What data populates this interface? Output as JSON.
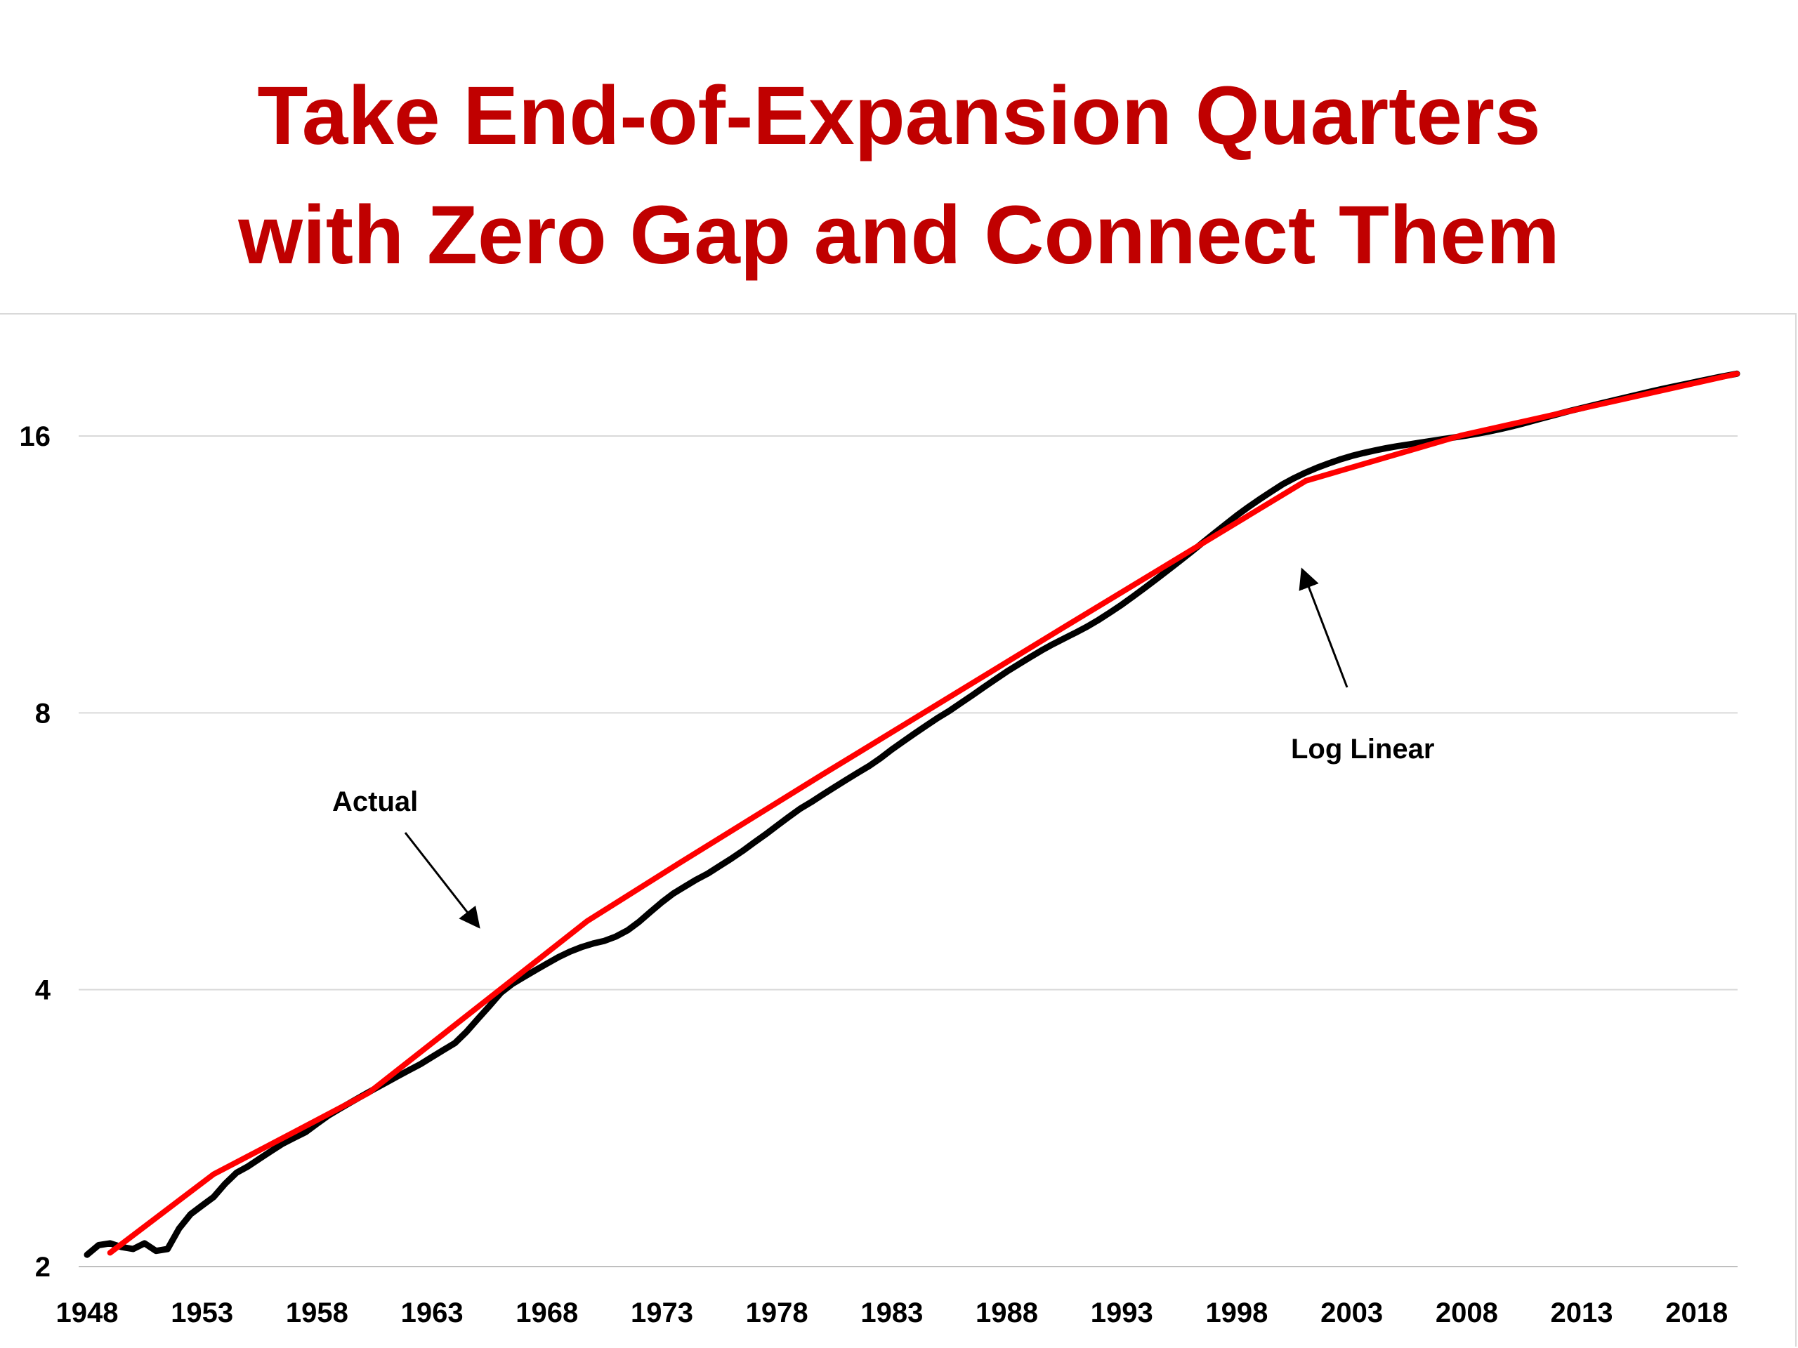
{
  "title_lines": [
    "Take End-of-Expansion Quarters",
    "with Zero Gap and Connect Them"
  ],
  "chart_data": {
    "type": "line",
    "title": "Take End-of-Expansion Quarters with Zero Gap and Connect Them",
    "xlabel": "",
    "ylabel": "",
    "y_scale": "log2",
    "xlim": [
      1948,
      2019.75
    ],
    "ylim": [
      2,
      19
    ],
    "x_ticks": [
      "1948",
      "1953",
      "1958",
      "1963",
      "1968",
      "1973",
      "1978",
      "1983",
      "1988",
      "1993",
      "1998",
      "2003",
      "2008",
      "2013",
      "2018"
    ],
    "y_ticks": [
      2,
      4,
      8,
      16
    ],
    "grid": "horizontal",
    "legend": "none",
    "series": [
      {
        "color": "#000000",
        "points": [
          [
            1948.0,
            2.06
          ],
          [
            1948.5,
            2.11
          ],
          [
            1949.0,
            2.12
          ],
          [
            1949.5,
            2.1
          ],
          [
            1950.0,
            2.09
          ],
          [
            1950.5,
            2.12
          ],
          [
            1951.0,
            2.08
          ],
          [
            1951.5,
            2.09
          ],
          [
            1952.0,
            2.2
          ],
          [
            1952.5,
            2.28
          ],
          [
            1953.0,
            2.33
          ],
          [
            1953.5,
            2.38
          ],
          [
            1954.0,
            2.46
          ],
          [
            1954.5,
            2.53
          ],
          [
            1955.0,
            2.57
          ],
          [
            1955.5,
            2.62
          ],
          [
            1956.0,
            2.67
          ],
          [
            1956.5,
            2.72
          ],
          [
            1957.0,
            2.76
          ],
          [
            1957.5,
            2.8
          ],
          [
            1958.0,
            2.86
          ],
          [
            1958.5,
            2.92
          ],
          [
            1959.0,
            2.97
          ],
          [
            1959.5,
            3.02
          ],
          [
            1960.0,
            3.07
          ],
          [
            1960.5,
            3.12
          ],
          [
            1961.0,
            3.17
          ],
          [
            1961.5,
            3.22
          ],
          [
            1962.0,
            3.27
          ],
          [
            1962.5,
            3.32
          ],
          [
            1963.0,
            3.38
          ],
          [
            1963.5,
            3.44
          ],
          [
            1964.0,
            3.5
          ],
          [
            1964.5,
            3.6
          ],
          [
            1965.0,
            3.72
          ],
          [
            1965.5,
            3.84
          ],
          [
            1966.0,
            3.97
          ],
          [
            1966.5,
            4.06
          ],
          [
            1967.0,
            4.13
          ],
          [
            1967.5,
            4.2
          ],
          [
            1968.0,
            4.27
          ],
          [
            1968.5,
            4.34
          ],
          [
            1969.0,
            4.4
          ],
          [
            1969.5,
            4.45
          ],
          [
            1970.0,
            4.49
          ],
          [
            1970.5,
            4.52
          ],
          [
            1971.0,
            4.57
          ],
          [
            1971.5,
            4.64
          ],
          [
            1972.0,
            4.74
          ],
          [
            1972.5,
            4.86
          ],
          [
            1973.0,
            4.98
          ],
          [
            1973.5,
            5.09
          ],
          [
            1974.0,
            5.18
          ],
          [
            1974.5,
            5.27
          ],
          [
            1975.0,
            5.35
          ],
          [
            1975.5,
            5.45
          ],
          [
            1976.0,
            5.55
          ],
          [
            1976.5,
            5.66
          ],
          [
            1977.0,
            5.78
          ],
          [
            1977.5,
            5.9
          ],
          [
            1978.0,
            6.03
          ],
          [
            1978.5,
            6.16
          ],
          [
            1979.0,
            6.29
          ],
          [
            1979.5,
            6.4
          ],
          [
            1980.0,
            6.52
          ],
          [
            1980.5,
            6.64
          ],
          [
            1981.0,
            6.76
          ],
          [
            1981.5,
            6.88
          ],
          [
            1982.0,
            7.0
          ],
          [
            1982.5,
            7.14
          ],
          [
            1983.0,
            7.3
          ],
          [
            1983.5,
            7.45
          ],
          [
            1984.0,
            7.6
          ],
          [
            1984.5,
            7.75
          ],
          [
            1985.0,
            7.9
          ],
          [
            1985.5,
            8.04
          ],
          [
            1986.0,
            8.2
          ],
          [
            1986.5,
            8.36
          ],
          [
            1987.0,
            8.53
          ],
          [
            1987.5,
            8.7
          ],
          [
            1988.0,
            8.87
          ],
          [
            1988.5,
            9.03
          ],
          [
            1989.0,
            9.19
          ],
          [
            1989.5,
            9.35
          ],
          [
            1990.0,
            9.5
          ],
          [
            1990.5,
            9.64
          ],
          [
            1991.0,
            9.78
          ],
          [
            1991.5,
            9.93
          ],
          [
            1992.0,
            10.1
          ],
          [
            1992.5,
            10.29
          ],
          [
            1993.0,
            10.49
          ],
          [
            1993.5,
            10.71
          ],
          [
            1994.0,
            10.94
          ],
          [
            1994.5,
            11.18
          ],
          [
            1995.0,
            11.43
          ],
          [
            1995.5,
            11.69
          ],
          [
            1996.0,
            11.96
          ],
          [
            1996.5,
            12.24
          ],
          [
            1997.0,
            12.53
          ],
          [
            1997.5,
            12.82
          ],
          [
            1998.0,
            13.11
          ],
          [
            1998.5,
            13.39
          ],
          [
            1999.0,
            13.66
          ],
          [
            1999.5,
            13.92
          ],
          [
            2000.0,
            14.18
          ],
          [
            2000.5,
            14.4
          ],
          [
            2001.0,
            14.6
          ],
          [
            2001.5,
            14.78
          ],
          [
            2002.0,
            14.94
          ],
          [
            2002.5,
            15.09
          ],
          [
            2003.0,
            15.22
          ],
          [
            2003.5,
            15.33
          ],
          [
            2004.0,
            15.43
          ],
          [
            2004.5,
            15.52
          ],
          [
            2005.0,
            15.6
          ],
          [
            2005.5,
            15.67
          ],
          [
            2006.0,
            15.74
          ],
          [
            2006.5,
            15.81
          ],
          [
            2007.0,
            15.88
          ],
          [
            2007.5,
            15.95
          ],
          [
            2008.0,
            16.02
          ],
          [
            2008.5,
            16.1
          ],
          [
            2009.0,
            16.19
          ],
          [
            2009.5,
            16.29
          ],
          [
            2010.0,
            16.4
          ],
          [
            2010.5,
            16.52
          ],
          [
            2011.0,
            16.65
          ],
          [
            2011.5,
            16.78
          ],
          [
            2012.0,
            16.91
          ],
          [
            2012.5,
            17.04
          ],
          [
            2013.0,
            17.16
          ],
          [
            2013.5,
            17.28
          ],
          [
            2014.0,
            17.4
          ],
          [
            2014.5,
            17.52
          ],
          [
            2015.0,
            17.64
          ],
          [
            2015.5,
            17.76
          ],
          [
            2016.0,
            17.88
          ],
          [
            2016.5,
            18.0
          ],
          [
            2017.0,
            18.11
          ],
          [
            2017.5,
            18.22
          ],
          [
            2018.0,
            18.33
          ],
          [
            2018.5,
            18.44
          ],
          [
            2019.0,
            18.55
          ],
          [
            2019.75,
            18.7
          ]
        ]
      },
      {
        "color": "#ff0000",
        "points": [
          [
            1949.0,
            2.07
          ],
          [
            1953.5,
            2.52
          ],
          [
            1957.0,
            2.8
          ],
          [
            1960.25,
            3.09
          ],
          [
            1969.75,
            4.75
          ],
          [
            1973.75,
            5.49
          ],
          [
            1980.0,
            6.86
          ],
          [
            1981.5,
            7.23
          ],
          [
            1990.5,
            9.92
          ],
          [
            2001.0,
            14.3
          ],
          [
            2007.75,
            16.02
          ],
          [
            2019.75,
            18.7
          ]
        ]
      }
    ],
    "annotations": [
      "Actual",
      "Log Linear"
    ]
  }
}
